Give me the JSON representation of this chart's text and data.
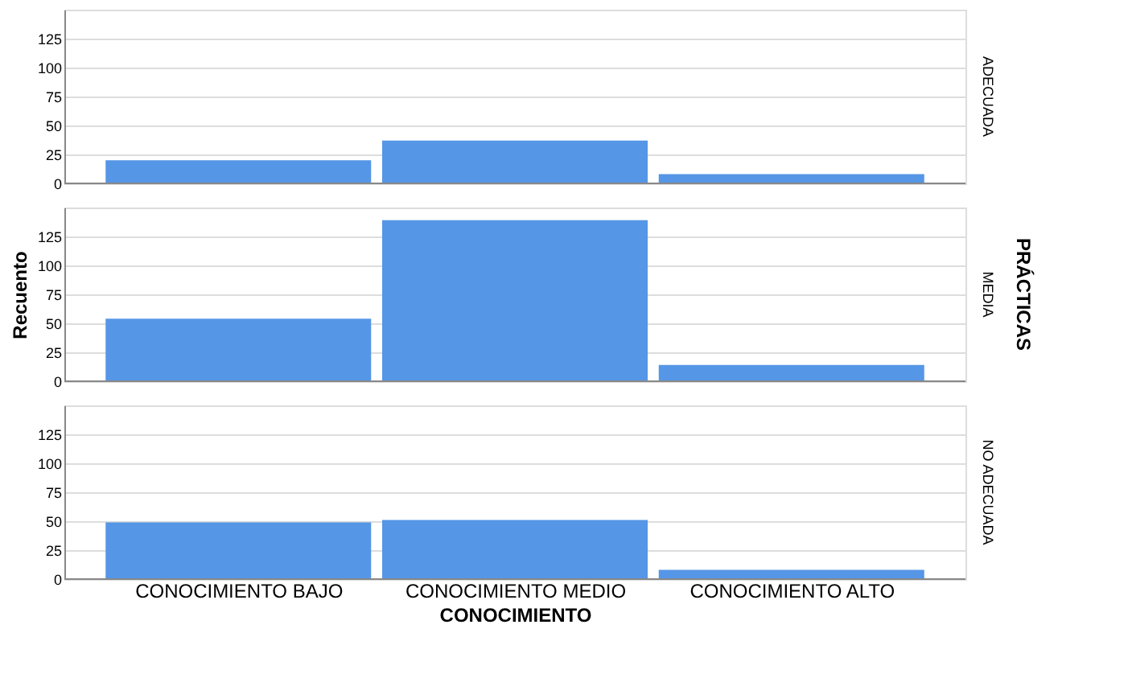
{
  "chart_data": [
    {
      "type": "bar",
      "categories": [
        null,
        null,
        null
      ],
      "values": [
        20,
        37,
        8
      ],
      "color": "#5596e6",
      "ylim": [
        0,
        150
      ],
      "yticks": [
        0,
        25,
        50,
        75,
        100,
        125
      ],
      "grid": "y",
      "tick_labels": "y",
      "y2label": "ADECUADA"
    },
    {
      "type": "bar",
      "categories": [
        null,
        null,
        null
      ],
      "values": [
        54,
        139,
        14
      ],
      "color": "#5596e6",
      "ylim": [
        0,
        150
      ],
      "yticks": [
        0,
        25,
        50,
        75,
        100,
        125
      ],
      "grid": "y",
      "tick_labels": "y",
      "ylabel": "Recuento",
      "y2label": "MEDIA",
      "annotations": [
        "PRÁCTICAS"
      ]
    },
    {
      "type": "bar",
      "categories": [
        "CONOCIMIENTO BAJO",
        "CONOCIMIENTO MEDIO",
        "CONOCIMIENTO ALTO"
      ],
      "values": [
        49,
        51,
        8
      ],
      "color": "#5596e6",
      "ylim": [
        0,
        150
      ],
      "yticks": [
        0,
        25,
        50,
        75,
        100,
        125
      ],
      "grid": "y",
      "xlabel": "CONOCIMIENTO",
      "y2label": "NO ADECUADA"
    }
  ]
}
